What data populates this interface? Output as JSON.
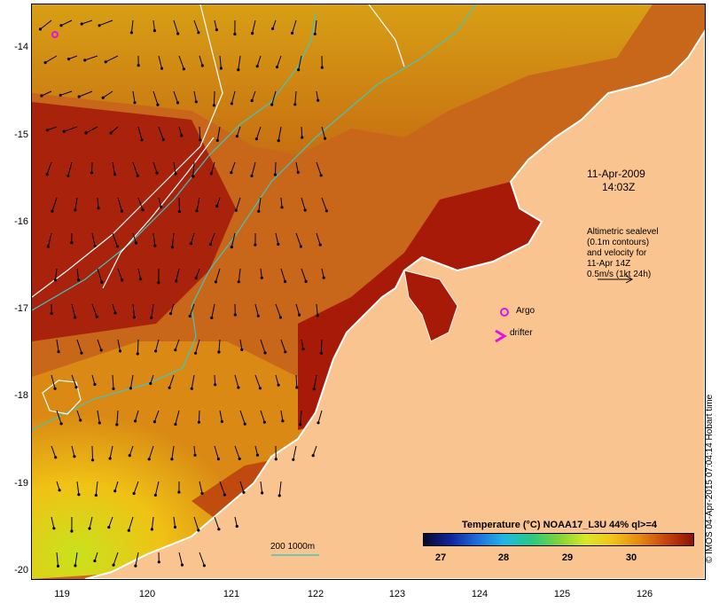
{
  "map": {
    "y_axis_labels": [
      "-14",
      "-15",
      "-16",
      "-17",
      "-18",
      "-19",
      "-20"
    ],
    "x_axis_labels": [
      "119",
      "120",
      "121",
      "122",
      "123",
      "124",
      "125",
      "126"
    ],
    "date": "11-Apr-2009",
    "time": "14:03Z",
    "altimetry_note": [
      "Altimetric sealevel",
      "(0.1m contours)",
      "and velocity for",
      "11-Apr 14Z",
      "0.5m/s (1kt 24h)"
    ],
    "legend_argo": "Argo",
    "legend_drifter": "drifter",
    "bathymetry_label": "200  1000m",
    "credit": "© IMOS 04-Apr-2015 07:04:14 Hobart time",
    "colorbar": {
      "title": "Temperature (°C) NOAA17_L3U 44% ql>=4",
      "ticks": [
        "27",
        "28",
        "29",
        "30"
      ],
      "range": [
        26.5,
        30.8
      ]
    },
    "colors": {
      "land": "#f9c48f",
      "warm_water": "#a81a08",
      "cool_water": "#e2ad18",
      "contour_200_1000m": "#3fc7c0",
      "sealevel_contour": "#ffffff",
      "argo_marker": "#e014e0"
    }
  }
}
